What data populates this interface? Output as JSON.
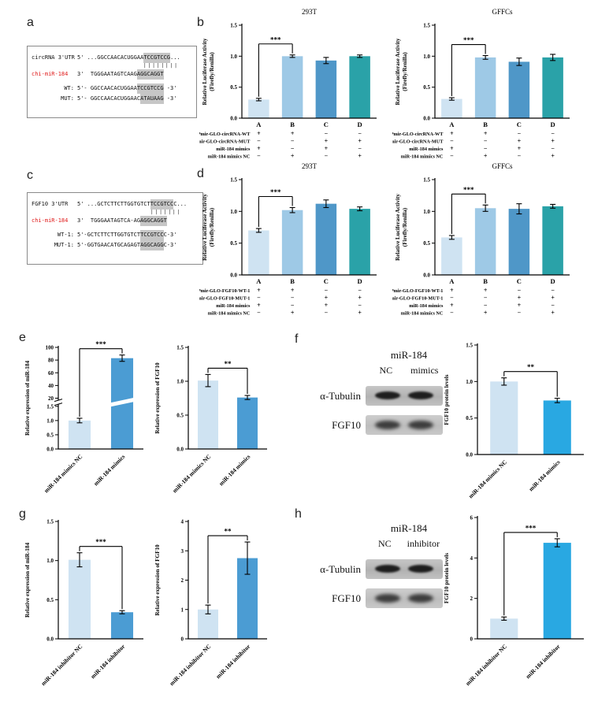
{
  "labels": {
    "a": "a",
    "b": "b",
    "c": "c",
    "d": "d",
    "e": "e",
    "f": "f",
    "g": "g",
    "h": "h"
  },
  "colors": {
    "mirna_red": "#e01b1b",
    "sequence_highlight": "#c6c6c6"
  },
  "panel_a": {
    "row1": {
      "name": "circRNA 3'UTR",
      "pre": "5' ...GGCCAACACUGGAA",
      "hl": "TCCGTCCG",
      "post": "..."
    },
    "pairing": "||||||||",
    "row2": {
      "name": "chi-miR-184",
      "pre": "3'  TGGGAATAGTCAAG",
      "hl": "AGGCAGGT",
      "post": ""
    },
    "row3": {
      "name": "WT:",
      "pre": "5'- GGCCAACACUGGAA",
      "hl": "TCCGTCCG",
      "post": " -3'"
    },
    "row4": {
      "name": "MUT:",
      "pre": "5'- GGCCAACACUGGAAC",
      "hl": "ATAUAAG",
      "post": " -3'"
    }
  },
  "panel_c": {
    "row1": {
      "name": "FGF10 3'UTR",
      "pre": "5' ...GCTCTTCTTGGTGTCT",
      "hl": "TCCGTCC",
      "post": "C..."
    },
    "pairing": "|||||||",
    "row2": {
      "name": "chi-miR-184",
      "pre": "3'  TGGGAATAGTCA-AG",
      "hl": "AGGCAGGT",
      "post": ""
    },
    "row3": {
      "name": "WT-1:",
      "pre": "5'-GCTCTTCTTGGTGTCT",
      "hl": "TCCGTCC",
      "post": "C-3'"
    },
    "row4": {
      "name": "MUT-1:",
      "pre": "5'-GGTGAACATGCAGAGT",
      "hl": "AGGCAGG",
      "post": "C-3'"
    }
  },
  "panel_f_blot": {
    "title": "miR-184",
    "lanes": [
      "NC",
      "mimics"
    ],
    "rows": [
      "α-Tubulin",
      "FGF10"
    ]
  },
  "panel_h_blot": {
    "title": "miR-184",
    "lanes": [
      "NC",
      "inhibitor"
    ],
    "rows": [
      "α-Tubulin",
      "FGF10"
    ]
  },
  "chart_data": [
    {
      "id": "b_293T",
      "type": "bar",
      "title": "293T",
      "ylabel": [
        "Relative Luciferase  Activity",
        "(Firefly/Renilla)"
      ],
      "ylim": [
        0,
        1.5
      ],
      "yticks": [
        "0.0",
        "0.5",
        "1.0",
        "1.5"
      ],
      "categories": [
        "A",
        "B",
        "C",
        "D"
      ],
      "values": [
        0.3,
        1.0,
        0.93,
        1.0
      ],
      "errors": [
        0.02,
        0.02,
        0.05,
        0.02
      ],
      "colors": [
        "#cfe3f2",
        "#9ec9e6",
        "#4f97c8",
        "#2aa2a8"
      ],
      "sig": {
        "a": 0,
        "b": 1,
        "label": "***"
      },
      "matrix": [
        {
          "label": "Pmir-GLO-circRNA-WT",
          "signs": [
            "+",
            "+",
            "−",
            "−"
          ]
        },
        {
          "label": "Pmir-GLO-circRNA-MUT",
          "signs": [
            "−",
            "−",
            "+",
            "+"
          ]
        },
        {
          "label": "miR-184 mimics",
          "signs": [
            "+",
            "−",
            "+",
            "−"
          ]
        },
        {
          "label": "miR-184 mimics NC",
          "signs": [
            "−",
            "+",
            "−",
            "+"
          ]
        }
      ]
    },
    {
      "id": "b_GFFCs",
      "type": "bar",
      "title": "GFFCs",
      "ylabel": [
        "Relative Luciferase  Activity",
        "(Firefly/Renilla)"
      ],
      "ylim": [
        0,
        1.5
      ],
      "yticks": [
        "0.0",
        "0.5",
        "1.0",
        "1.5"
      ],
      "categories": [
        "A",
        "B",
        "C",
        "D"
      ],
      "values": [
        0.31,
        0.98,
        0.91,
        0.98
      ],
      "errors": [
        0.02,
        0.03,
        0.06,
        0.05
      ],
      "colors": [
        "#cfe3f2",
        "#9ec9e6",
        "#4f97c8",
        "#2aa2a8"
      ],
      "sig": {
        "a": 0,
        "b": 1,
        "label": "***"
      },
      "matrix": [
        {
          "label": "Pmir-GLO-circRNA-WT",
          "signs": [
            "+",
            "+",
            "−",
            "−"
          ]
        },
        {
          "label": "Pmir-GLO-circRNA-MUT",
          "signs": [
            "−",
            "−",
            "+",
            "+"
          ]
        },
        {
          "label": "miR-184 mimics",
          "signs": [
            "+",
            "−",
            "+",
            "−"
          ]
        },
        {
          "label": "miR-184 mimics NC",
          "signs": [
            "−",
            "+",
            "−",
            "+"
          ]
        }
      ]
    },
    {
      "id": "d_293T",
      "type": "bar",
      "title": "293T",
      "ylabel": [
        "Relative Luciferase  Activity",
        "(Firefly/Renilla)"
      ],
      "ylim": [
        0,
        1.5
      ],
      "yticks": [
        "0.0",
        "0.5",
        "1.0",
        "1.5"
      ],
      "categories": [
        "A",
        "B",
        "C",
        "D"
      ],
      "values": [
        0.7,
        1.02,
        1.12,
        1.04
      ],
      "errors": [
        0.03,
        0.04,
        0.06,
        0.03
      ],
      "colors": [
        "#cfe3f2",
        "#9ec9e6",
        "#4f97c8",
        "#2aa2a8"
      ],
      "sig": {
        "a": 0,
        "b": 1,
        "label": "***"
      },
      "matrix": [
        {
          "label": "Pmir-GLO-FGF10-WT-1",
          "signs": [
            "+",
            "+",
            "−",
            "−"
          ]
        },
        {
          "label": "Pmir-GLO-FGF10-MUT-1",
          "signs": [
            "−",
            "−",
            "+",
            "+"
          ]
        },
        {
          "label": "miR-184 mimics",
          "signs": [
            "+",
            "−",
            "+",
            "−"
          ]
        },
        {
          "label": "miR-184 mimics NC",
          "signs": [
            "−",
            "+",
            "−",
            "+"
          ]
        }
      ]
    },
    {
      "id": "d_GFFCs",
      "type": "bar",
      "title": "GFFCs",
      "ylabel": [
        "Relative Luciferase  Activity",
        "(Firefly/Renilla)"
      ],
      "ylim": [
        0,
        1.5
      ],
      "yticks": [
        "0.0",
        "0.5",
        "1.0",
        "1.5"
      ],
      "categories": [
        "A",
        "B",
        "C",
        "D"
      ],
      "values": [
        0.59,
        1.05,
        1.04,
        1.08
      ],
      "errors": [
        0.03,
        0.05,
        0.08,
        0.03
      ],
      "colors": [
        "#cfe3f2",
        "#9ec9e6",
        "#4f97c8",
        "#2aa2a8"
      ],
      "sig": {
        "a": 0,
        "b": 1,
        "label": "***"
      },
      "matrix": [
        {
          "label": "Pmir-GLO-FGF10-WT-1",
          "signs": [
            "+",
            "+",
            "−",
            "−"
          ]
        },
        {
          "label": "Pmir-GLO-FGF10-MUT-1",
          "signs": [
            "−",
            "−",
            "+",
            "+"
          ]
        },
        {
          "label": "miR-184 mimics",
          "signs": [
            "+",
            "−",
            "+",
            "−"
          ]
        },
        {
          "label": "miR-184 mimics NC",
          "signs": [
            "−",
            "+",
            "−",
            "+"
          ]
        }
      ]
    },
    {
      "id": "e_miR184",
      "type": "bar",
      "ylabel": [
        "Relative expression of miR-184"
      ],
      "broken": {
        "lower": [
          0,
          1.5
        ],
        "lower_ticks": [
          "0.0",
          "0.5",
          "1.0",
          "1.5"
        ],
        "upper": [
          20,
          100
        ],
        "upper_ticks": [
          "20",
          "40",
          "60",
          "80",
          "100"
        ]
      },
      "categories": [
        "miR-184 mimics NC",
        "miR-184 mimics"
      ],
      "values": [
        1.0,
        83
      ],
      "errors": [
        0.08,
        5
      ],
      "colors": [
        "#cfe3f2",
        "#4b9cd3"
      ],
      "sig": {
        "a": 0,
        "b": 1,
        "label": "***"
      }
    },
    {
      "id": "e_FGF10",
      "type": "bar",
      "ylabel": [
        "Relative expression of FGF10"
      ],
      "ylim": [
        0,
        1.5
      ],
      "yticks": [
        "0.0",
        "0.5",
        "1.0",
        "1.5"
      ],
      "categories": [
        "miR-184 mimics NC",
        "miR-184 mimics"
      ],
      "values": [
        1.01,
        0.76
      ],
      "errors": [
        0.09,
        0.03
      ],
      "colors": [
        "#cfe3f2",
        "#4b9cd3"
      ],
      "sig": {
        "a": 0,
        "b": 1,
        "label": "**"
      }
    },
    {
      "id": "f_FGF10_protein",
      "type": "bar",
      "ylabel": [
        "FGF10 protein levels"
      ],
      "ylim": [
        0,
        1.5
      ],
      "yticks": [
        "0.0",
        "0.5",
        "1.0",
        "1.5"
      ],
      "categories": [
        "miR-184 mimics NC",
        "miR-184 mimics"
      ],
      "values": [
        1.0,
        0.74
      ],
      "errors": [
        0.05,
        0.03
      ],
      "colors": [
        "#cfe3f2",
        "#29a8e2"
      ],
      "sig": {
        "a": 0,
        "b": 1,
        "label": "**"
      }
    },
    {
      "id": "g_miR184",
      "type": "bar",
      "ylabel": [
        "Relative expression of miR-184"
      ],
      "ylim": [
        0,
        1.5
      ],
      "yticks": [
        "0.0",
        "0.5",
        "1.0",
        "1.5"
      ],
      "categories": [
        "miR-184 inhibitor NC",
        "miR-184 inhibitor"
      ],
      "values": [
        1.01,
        0.34
      ],
      "errors": [
        0.09,
        0.02
      ],
      "colors": [
        "#cfe3f2",
        "#4b9cd3"
      ],
      "sig": {
        "a": 0,
        "b": 1,
        "label": "***"
      }
    },
    {
      "id": "g_FGF10",
      "type": "bar",
      "ylabel": [
        "Relative expression of FGF10"
      ],
      "ylim": [
        0,
        4
      ],
      "yticks": [
        "0",
        "1",
        "2",
        "3",
        "4"
      ],
      "categories": [
        "miR-184 inhibitor NC",
        "miR-184 inhibitor"
      ],
      "values": [
        1.0,
        2.75
      ],
      "errors": [
        0.15,
        0.55
      ],
      "colors": [
        "#cfe3f2",
        "#4b9cd3"
      ],
      "sig": {
        "a": 0,
        "b": 1,
        "label": "**"
      }
    },
    {
      "id": "h_FGF10_protein",
      "type": "bar",
      "ylabel": [
        "FGF10 protein levels"
      ],
      "ylim": [
        0,
        6
      ],
      "yticks": [
        "0",
        "2",
        "4",
        "6"
      ],
      "categories": [
        "miR-184 inhibitor NC",
        "miR-184 inhibitor"
      ],
      "values": [
        1.0,
        4.75
      ],
      "errors": [
        0.08,
        0.2
      ],
      "colors": [
        "#cfe3f2",
        "#29a8e2"
      ],
      "sig": {
        "a": 0,
        "b": 1,
        "label": "***"
      }
    }
  ]
}
